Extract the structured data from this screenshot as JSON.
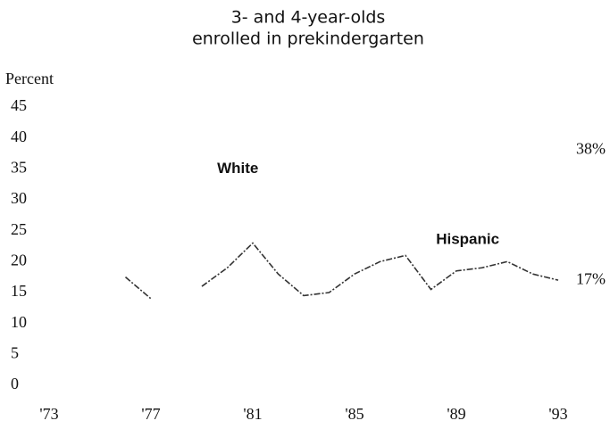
{
  "chart_data": {
    "type": "line",
    "title": "3- and 4-year-olds",
    "subtitle": "enrolled in prekindergarten",
    "y_label": "Percent",
    "x": [
      1976,
      1977,
      1978,
      1979,
      1980,
      1981,
      1982,
      1983,
      1984,
      1985,
      1986,
      1987,
      1988,
      1989,
      1990,
      1991,
      1992,
      1993
    ],
    "series": [
      {
        "name": "Hispanic",
        "color": "#333333",
        "values": [
          17.5,
          14,
          null,
          16,
          19,
          23,
          18,
          14.5,
          15,
          18,
          20,
          21,
          15.5,
          18.5,
          19,
          20,
          18,
          17
        ]
      }
    ],
    "annotations": [
      {
        "text": "White",
        "x": 1979.6,
        "y": 35
      },
      {
        "text": "Hispanic",
        "x": 1988.2,
        "y": 23.5
      },
      {
        "text": "38%",
        "x": 1993.7,
        "y": 38
      },
      {
        "text": "17%",
        "x": 1993.7,
        "y": 17
      }
    ],
    "xlim": [
      1973,
      1993
    ],
    "xticks": [
      {
        "value": 1973,
        "label": "'73"
      },
      {
        "value": 1977,
        "label": "'77"
      },
      {
        "value": 1981,
        "label": "'81"
      },
      {
        "value": 1985,
        "label": "'85"
      },
      {
        "value": 1989,
        "label": "'89"
      },
      {
        "value": 1993,
        "label": "'93"
      }
    ],
    "ylim": [
      0,
      45
    ],
    "yticks": [
      0,
      5,
      10,
      15,
      20,
      25,
      30,
      35,
      40,
      45
    ],
    "grid": false
  }
}
